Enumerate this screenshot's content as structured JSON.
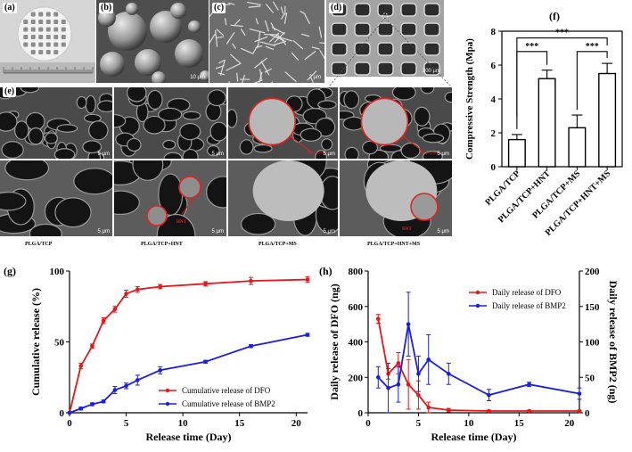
{
  "figure": {
    "panel_labels": {
      "a": "(a)",
      "b": "(b)",
      "c": "(c)",
      "d": "(d)",
      "e": "(e)",
      "f": "(f)",
      "g": "(g)",
      "h": "(h)"
    },
    "scalebars": {
      "b": "10 μm",
      "c": "2 μm",
      "d": "300 μm",
      "e_top": [
        "5 μm",
        "5 μm",
        "5 μm",
        "5 μm"
      ],
      "e_bottom": [
        "5 μm",
        "5 μm",
        "5 μm",
        "5 μm"
      ]
    },
    "annotations": {
      "hnt": "HNT",
      "microsphere": "Microsphere"
    },
    "e_captions": [
      "PLGA/TCP",
      "PLGA/TCP+HNT",
      "PLGA/TCP+MS",
      "PLGA/TCP+HNT+MS"
    ]
  },
  "chart_data": [
    {
      "id": "f",
      "type": "bar",
      "ylabel": "Compressive Strength (Mpa)",
      "ylim": [
        0,
        8
      ],
      "yticks": [
        "0",
        "2",
        "4",
        "6",
        "8"
      ],
      "categories": [
        "PLGA/TCP",
        "PLGA/TCP+HNT",
        "PLGA/TCP+MS",
        "PLGA/TCP+HNT+MS"
      ],
      "values": [
        1.6,
        5.2,
        2.3,
        5.5
      ],
      "errors": [
        0.3,
        0.5,
        0.75,
        0.6
      ],
      "significance": [
        {
          "from": 0,
          "to": 1,
          "label": "***"
        },
        {
          "from": 2,
          "to": 3,
          "label": "***"
        },
        {
          "from": 0,
          "to": 3,
          "label": "***"
        }
      ]
    },
    {
      "id": "g",
      "type": "line",
      "xlabel": "Release time (Day)",
      "ylabel": "Cumulative release (%)",
      "xlim": [
        0,
        21
      ],
      "ylim": [
        0,
        100
      ],
      "xticks": [
        "0",
        "5",
        "10",
        "15",
        "20"
      ],
      "yticks": [
        "0",
        "50",
        "100"
      ],
      "legend_position": "bottom-right",
      "series": [
        {
          "name": "Cumulative release of DFO",
          "color": "#e8151b",
          "x": [
            0,
            1,
            2,
            3,
            4,
            5,
            6,
            8,
            12,
            16,
            21
          ],
          "y": [
            0,
            33,
            47,
            65,
            73,
            84,
            87,
            89,
            91,
            93,
            94
          ],
          "err": [
            0,
            2,
            1.5,
            2,
            2,
            2.5,
            2,
            1.5,
            1.5,
            2.5,
            2
          ]
        },
        {
          "name": "Cumulative release of BMP2",
          "color": "#1b1de6",
          "x": [
            0,
            1,
            2,
            3,
            4,
            5,
            6,
            8,
            12,
            16,
            21
          ],
          "y": [
            0,
            3,
            6,
            8,
            16,
            19,
            23,
            30,
            36,
            47,
            55
          ],
          "err": [
            0,
            1,
            1,
            1,
            2.5,
            2,
            3.5,
            2.5,
            1,
            1,
            1
          ]
        }
      ]
    },
    {
      "id": "h",
      "type": "line",
      "xlabel": "Release time (Day)",
      "ylabel": "Daily release of DFO (ng)",
      "ylabel_right": "Daily release of BMP2 (ng)",
      "xlim": [
        0,
        21
      ],
      "ylim": [
        0,
        800
      ],
      "ylim_right": [
        0,
        200
      ],
      "xticks": [
        "0",
        "5",
        "10",
        "15",
        "20"
      ],
      "yticks": [
        "0",
        "200",
        "400",
        "600",
        "800"
      ],
      "yticks_right": [
        "0",
        "50",
        "100",
        "150",
        "200"
      ],
      "legend_position": "top-right",
      "series": [
        {
          "name": "Daily release of DFO",
          "color": "#e8151b",
          "axis": "left",
          "x": [
            1,
            2,
            3,
            4,
            5,
            6,
            8,
            12,
            16,
            21
          ],
          "y": [
            530,
            220,
            280,
            160,
            100,
            30,
            15,
            10,
            10,
            10
          ],
          "err": [
            25,
            30,
            60,
            140,
            80,
            30,
            10,
            5,
            5,
            5
          ]
        },
        {
          "name": "Daily release of BMP2",
          "color": "#1b1de6",
          "axis": "right",
          "x": [
            1,
            2,
            3,
            4,
            5,
            6,
            8,
            12,
            16,
            21
          ],
          "y": [
            50,
            35,
            40,
            125,
            55,
            75,
            55,
            25,
            40,
            27
          ],
          "err": [
            15,
            35,
            25,
            45,
            25,
            35,
            15,
            8,
            3,
            8
          ]
        }
      ]
    }
  ]
}
